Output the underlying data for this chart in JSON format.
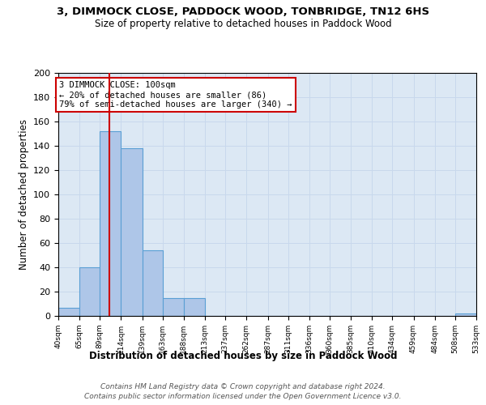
{
  "title": "3, DIMMOCK CLOSE, PADDOCK WOOD, TONBRIDGE, TN12 6HS",
  "subtitle": "Size of property relative to detached houses in Paddock Wood",
  "xlabel": "Distribution of detached houses by size in Paddock Wood",
  "ylabel": "Number of detached properties",
  "bin_edges": [
    40,
    65,
    89,
    114,
    139,
    163,
    188,
    213,
    237,
    262,
    287,
    311,
    336,
    360,
    385,
    410,
    434,
    459,
    484,
    508,
    533
  ],
  "bar_heights": [
    7,
    40,
    152,
    138,
    54,
    15,
    15,
    0,
    0,
    0,
    0,
    0,
    0,
    0,
    0,
    0,
    0,
    0,
    0,
    2
  ],
  "bar_color": "#aec6e8",
  "bar_edge_color": "#5a9fd4",
  "bar_edge_width": 0.8,
  "grid_color": "#c8d8ec",
  "background_color": "#dce8f4",
  "red_line_x": 100,
  "red_line_color": "#cc0000",
  "annotation_text": "3 DIMMOCK CLOSE: 100sqm\n← 20% of detached houses are smaller (86)\n79% of semi-detached houses are larger (340) →",
  "annotation_box_color": "#ffffff",
  "annotation_box_edge": "#cc0000",
  "ylim": [
    0,
    200
  ],
  "yticks": [
    0,
    20,
    40,
    60,
    80,
    100,
    120,
    140,
    160,
    180,
    200
  ],
  "footer_line1": "Contains HM Land Registry data © Crown copyright and database right 2024.",
  "footer_line2": "Contains public sector information licensed under the Open Government Licence v3.0.",
  "figwidth": 6.0,
  "figheight": 5.0,
  "dpi": 100
}
